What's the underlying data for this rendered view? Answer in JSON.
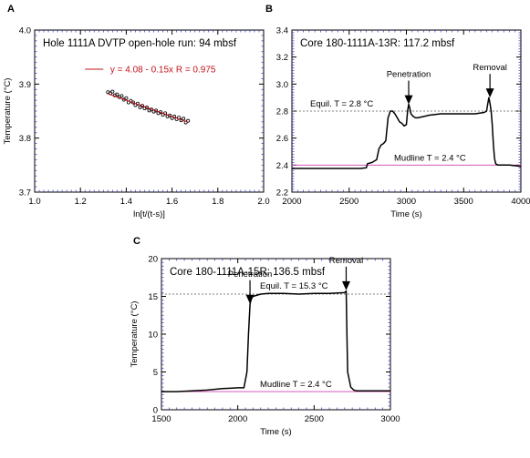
{
  "chart_data": [
    {
      "panel": "A",
      "type": "scatter",
      "title": "Hole 1111A DVTP open-hole run: 94 mbsf",
      "xlabel": "ln[t/(t-s)]",
      "ylabel": "Temperature (°C)",
      "xlim": [
        1.0,
        2.0
      ],
      "ylim": [
        3.7,
        4.0
      ],
      "xticks": [
        1.0,
        1.2,
        1.4,
        1.6,
        1.8,
        2.0
      ],
      "yticks": [
        3.7,
        3.8,
        3.9,
        4.0
      ],
      "xtick_labels": [
        "1.0",
        "1.2",
        "1.4",
        "1.6",
        "1.8",
        "2.0"
      ],
      "ytick_labels": [
        "3.7",
        "3.8",
        "3.9",
        "4.0"
      ],
      "legend": "y = 4.08 - 0.15x  R = 0.975",
      "fit": {
        "intercept": 4.08,
        "slope": -0.15,
        "x_range": [
          1.32,
          1.67
        ]
      },
      "points": [
        [
          1.32,
          3.885
        ],
        [
          1.33,
          3.883
        ],
        [
          1.34,
          3.886
        ],
        [
          1.35,
          3.879
        ],
        [
          1.36,
          3.881
        ],
        [
          1.37,
          3.876
        ],
        [
          1.38,
          3.878
        ],
        [
          1.39,
          3.871
        ],
        [
          1.4,
          3.874
        ],
        [
          1.41,
          3.866
        ],
        [
          1.42,
          3.869
        ],
        [
          1.43,
          3.866
        ],
        [
          1.44,
          3.861
        ],
        [
          1.45,
          3.864
        ],
        [
          1.46,
          3.857
        ],
        [
          1.47,
          3.86
        ],
        [
          1.48,
          3.855
        ],
        [
          1.49,
          3.857
        ],
        [
          1.5,
          3.851
        ],
        [
          1.51,
          3.853
        ],
        [
          1.52,
          3.849
        ],
        [
          1.53,
          3.851
        ],
        [
          1.54,
          3.846
        ],
        [
          1.55,
          3.848
        ],
        [
          1.56,
          3.843
        ],
        [
          1.57,
          3.846
        ],
        [
          1.58,
          3.84
        ],
        [
          1.59,
          3.842
        ],
        [
          1.6,
          3.837
        ],
        [
          1.61,
          3.84
        ],
        [
          1.62,
          3.835
        ],
        [
          1.63,
          3.838
        ],
        [
          1.64,
          3.833
        ],
        [
          1.65,
          3.836
        ],
        [
          1.66,
          3.829
        ],
        [
          1.67,
          3.832
        ]
      ]
    },
    {
      "panel": "B",
      "type": "line",
      "title": "Core 180-1111A-13R:  117.2 mbsf",
      "xlabel": "Time (s)",
      "ylabel": "",
      "xlim": [
        2000,
        4000
      ],
      "ylim": [
        2.2,
        3.4
      ],
      "xticks": [
        2000,
        2500,
        3000,
        3500,
        4000
      ],
      "yticks": [
        2.2,
        2.4,
        2.6,
        2.8,
        3.0,
        3.2,
        3.4
      ],
      "xtick_labels": [
        "2000",
        "2500",
        "3000",
        "3500",
        "4000"
      ],
      "ytick_labels": [
        "2.2",
        "2.4",
        "2.6",
        "2.8",
        "3.0",
        "3.2",
        "3.4"
      ],
      "equil_label": "Equil. T = 2.8 °C",
      "equil_value": 2.8,
      "mudline_label": "Mudline T = 2.4 °C",
      "mudline_value": 2.4,
      "arrows": [
        {
          "label": "Penetration",
          "x": 3020,
          "y_tip": 2.85
        },
        {
          "label": "Removal",
          "x": 3730,
          "y_tip": 2.9
        }
      ],
      "series": [
        {
          "x": [
            2000,
            2300,
            2600,
            2650,
            2660,
            2700,
            2740,
            2760,
            2780,
            2800,
            2820,
            2840,
            2860,
            2880,
            2900,
            2920,
            2940,
            2960,
            2980,
            3000,
            3010,
            3020,
            3030,
            3040,
            3060,
            3080,
            3100,
            3200,
            3300,
            3400,
            3500,
            3600,
            3680,
            3700,
            3710,
            3720,
            3730,
            3740,
            3750,
            3760,
            3770,
            3780,
            3800,
            3850,
            3900,
            4000
          ],
          "y": [
            2.375,
            2.375,
            2.375,
            2.38,
            2.41,
            2.42,
            2.44,
            2.52,
            2.55,
            2.56,
            2.58,
            2.75,
            2.8,
            2.8,
            2.78,
            2.75,
            2.72,
            2.71,
            2.69,
            2.7,
            2.8,
            2.85,
            2.82,
            2.78,
            2.76,
            2.75,
            2.75,
            2.77,
            2.78,
            2.78,
            2.78,
            2.78,
            2.79,
            2.8,
            2.85,
            2.9,
            2.86,
            2.8,
            2.7,
            2.55,
            2.45,
            2.41,
            2.4,
            2.4,
            2.4,
            2.39
          ]
        }
      ]
    },
    {
      "panel": "C",
      "type": "line",
      "title": "Core 180-1111A-15R:  136.5 mbsf",
      "xlabel": "Time (s)",
      "ylabel": "Temperature (°C)",
      "xlim": [
        1500,
        3000
      ],
      "ylim": [
        0,
        20
      ],
      "xticks": [
        1500,
        2000,
        2500,
        3000
      ],
      "yticks": [
        0,
        5,
        10,
        15,
        20
      ],
      "xtick_labels": [
        "1500",
        "2000",
        "2500",
        "3000"
      ],
      "ytick_labels": [
        "0",
        "5",
        "10",
        "15",
        "20"
      ],
      "equil_label": "Equil. T = 15.3 °C",
      "equil_value": 15.3,
      "mudline_label": "Mudline T = 2.4 °C",
      "mudline_value": 2.4,
      "arrows": [
        {
          "label": "Penetration",
          "x": 2080,
          "y_tip": 14.0
        },
        {
          "label": "Removal",
          "x": 2710,
          "y_tip": 15.8
        }
      ],
      "series": [
        {
          "x": [
            1500,
            1600,
            1700,
            1800,
            1900,
            2000,
            2040,
            2060,
            2070,
            2080,
            2090,
            2100,
            2150,
            2200,
            2300,
            2400,
            2500,
            2600,
            2700,
            2710,
            2715,
            2720,
            2740,
            2760,
            2780,
            2800,
            3000
          ],
          "y": [
            2.4,
            2.4,
            2.5,
            2.6,
            2.8,
            2.9,
            2.9,
            5.0,
            10.0,
            14.0,
            14.8,
            15.0,
            15.3,
            15.4,
            15.4,
            15.3,
            15.4,
            15.4,
            15.5,
            15.7,
            10.0,
            5.0,
            3.0,
            2.6,
            2.5,
            2.5,
            2.5
          ]
        }
      ]
    }
  ]
}
